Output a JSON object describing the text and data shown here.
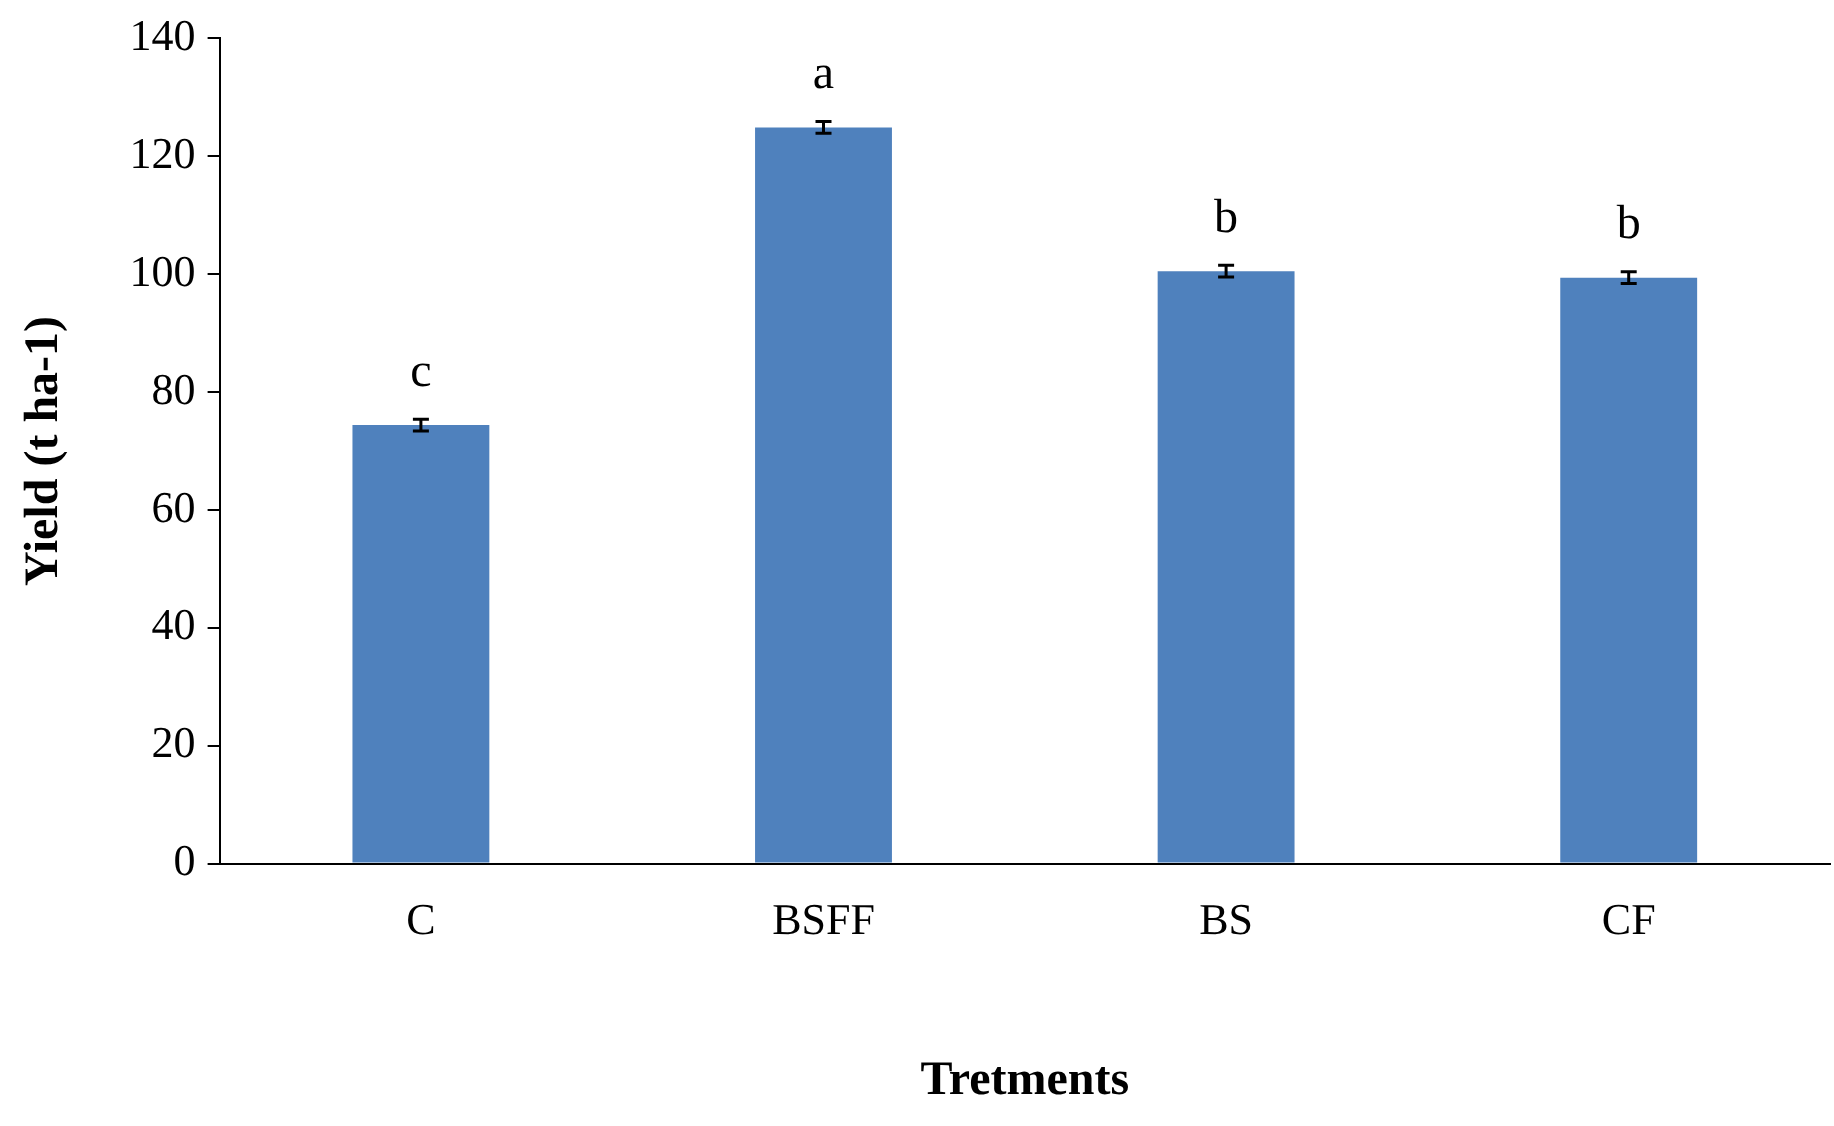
{
  "chart_data": {
    "type": "bar",
    "xlabel": "Tretments",
    "ylabel": "Yield (t ha-1)",
    "categories": [
      "C",
      "BSFF",
      "BS",
      "CF"
    ],
    "values": [
      74.4,
      124.9,
      100.5,
      99.4
    ],
    "errors": [
      1,
      1,
      1,
      1
    ],
    "color": "#4f81bd",
    "ylim": [
      0,
      140
    ],
    "yticks": [
      0,
      20,
      40,
      60,
      80,
      100,
      120,
      140
    ],
    "grid": false,
    "legend": false,
    "annotations": [
      {
        "text": "c",
        "x": "C",
        "y": 74.4
      },
      {
        "text": "a",
        "x": "BSFF",
        "y": 124.9
      },
      {
        "text": "b",
        "x": "BS",
        "y": 100.5
      },
      {
        "text": "b",
        "x": "CF",
        "y": 99.4
      }
    ]
  }
}
